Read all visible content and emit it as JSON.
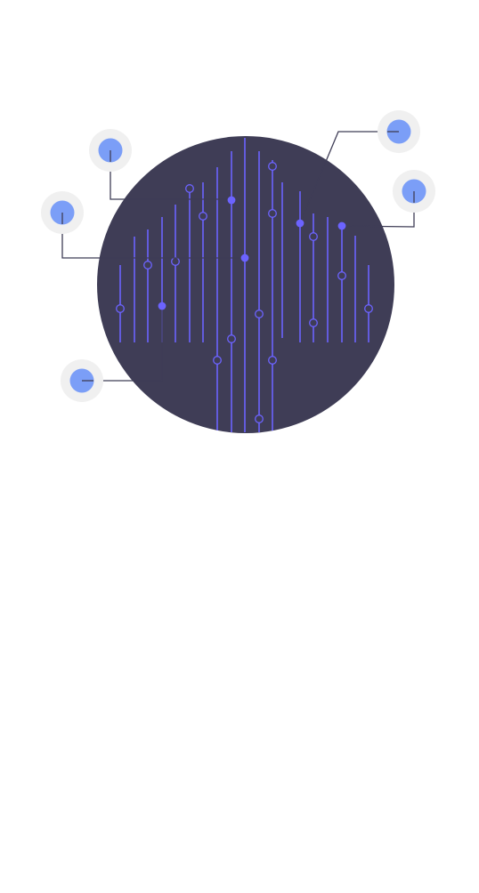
{
  "illustration": {
    "name": "circuit-board-illustration",
    "colors": {
      "background": "#ffffff",
      "disc": "#3f3d56",
      "trace": "#6c63ff",
      "node_halo": "#f0f0f0",
      "node_core": "#7b9ef7",
      "connector": "#3f3d56"
    }
  }
}
